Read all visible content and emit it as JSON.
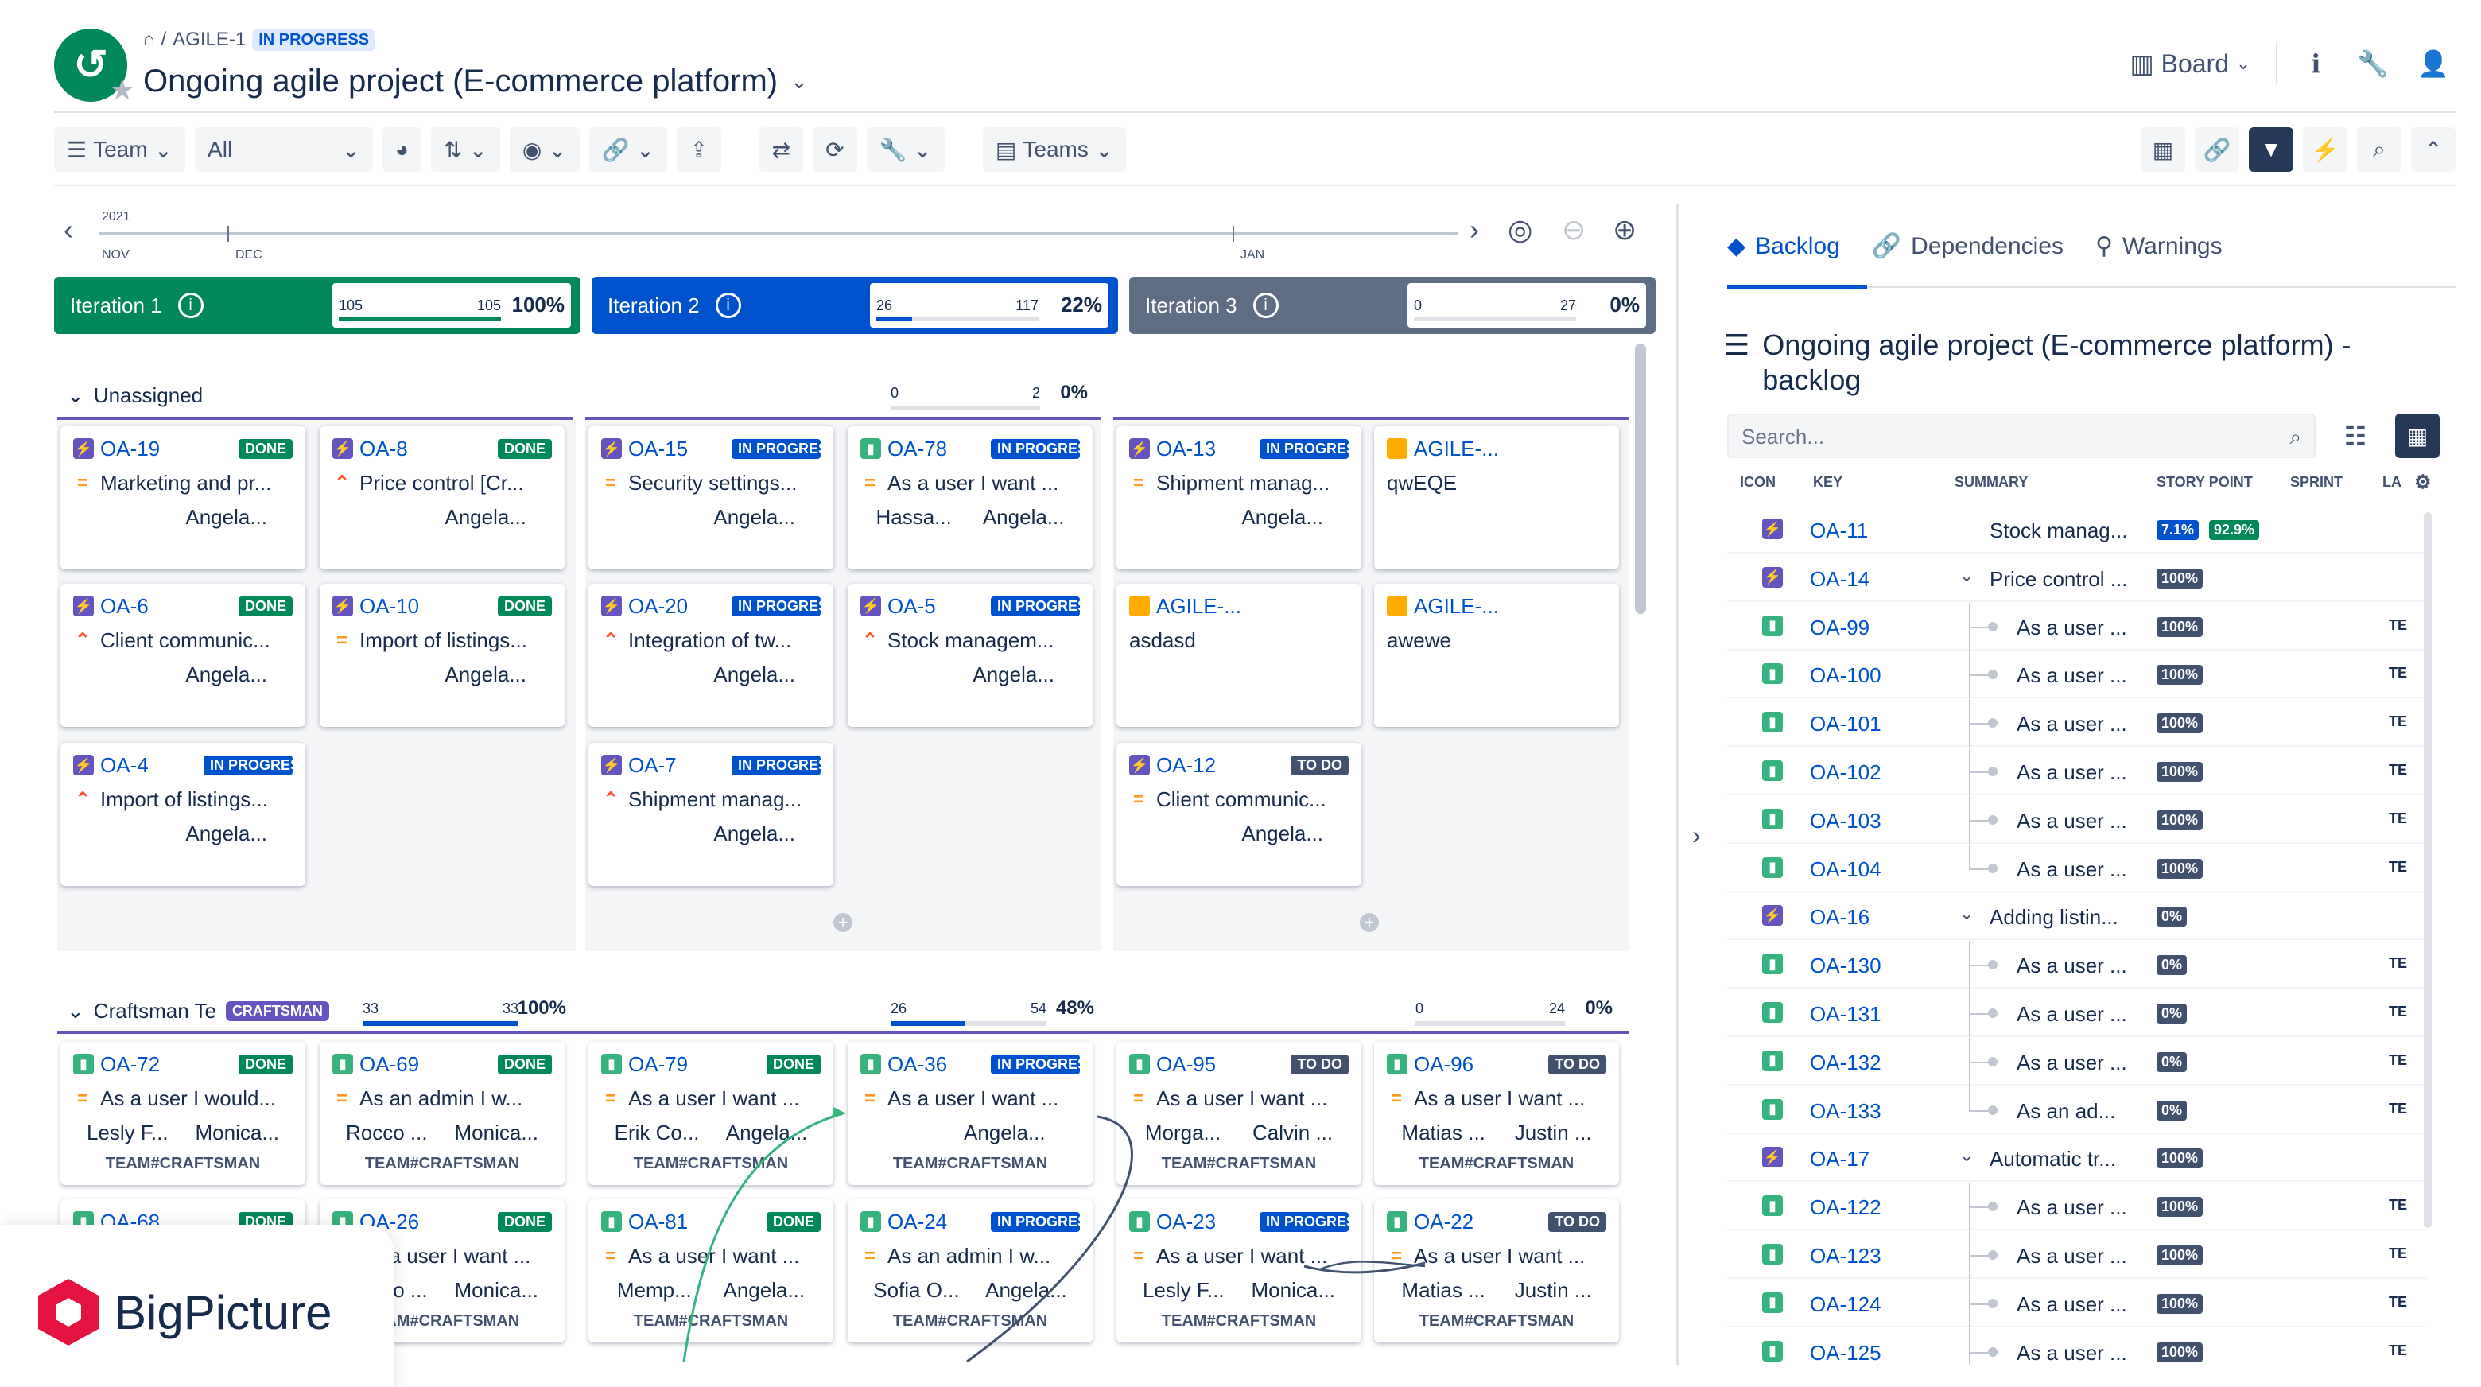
{
  "header": {
    "breadcrumb_key": "AGILE-1",
    "breadcrumb_sep": "/",
    "status": "IN PROGRESS",
    "title": "Ongoing agile project (E-commerce platform)",
    "view_label": "Board"
  },
  "toolbar": {
    "team_label": "Team",
    "filter_value": "All",
    "teams_label": "Teams"
  },
  "timeline": {
    "year": "2021",
    "months": [
      "NOV",
      "DEC",
      "JAN"
    ]
  },
  "iterations": [
    {
      "name": "Iteration 1",
      "done": "105",
      "total": "105",
      "percent": "100%",
      "fill": 1.0,
      "color": "#00875a"
    },
    {
      "name": "Iteration 2",
      "done": "26",
      "total": "117",
      "percent": "22%",
      "fill": 0.22,
      "color": "#0052cc"
    },
    {
      "name": "Iteration 3",
      "done": "0",
      "total": "27",
      "percent": "0%",
      "fill": 0.0,
      "color": "#5e6c84"
    }
  ],
  "lanes": {
    "unassigned": {
      "name": "Unassigned",
      "progress": {
        "done": "0",
        "total": "2",
        "percent": "0%",
        "fill": 0.0
      }
    },
    "craftsman": {
      "name": "Craftsman Te",
      "badge": "CRAFTSMAN",
      "progress": [
        {
          "done": "33",
          "total": "33",
          "percent": "100%",
          "fill": 1.0
        },
        {
          "done": "26",
          "total": "54",
          "percent": "48%",
          "fill": 0.48
        },
        {
          "done": "0",
          "total": "24",
          "percent": "0%",
          "fill": 0.0
        }
      ]
    }
  },
  "cards": [
    {
      "key": "OA-19",
      "status": "DONE",
      "summary": "Marketing and pr...",
      "assignee": "Angela...",
      "icon": "epic",
      "prio": "med"
    },
    {
      "key": "OA-8",
      "status": "DONE",
      "summary": "Price control [Cr...",
      "assignee": "Angela...",
      "icon": "epic",
      "prio": "high"
    },
    {
      "key": "OA-15",
      "status": "IN PROGRESS",
      "summary": "Security settings...",
      "assignee": "Angela...",
      "icon": "epic",
      "prio": "med"
    },
    {
      "key": "OA-78",
      "status": "IN PROGRESS",
      "summary": "As a user I want ...",
      "assignee": "Hassa...",
      "assignee2": "Angela...",
      "icon": "story",
      "prio": "med"
    },
    {
      "key": "OA-13",
      "status": "IN PROGRESS",
      "summary": "Shipment manag...",
      "assignee": "Angela...",
      "icon": "epic",
      "prio": "med"
    },
    {
      "key": "AGILE-...",
      "status": "",
      "summary": "qwEQE",
      "assignee": "",
      "icon": "sub",
      "prio": ""
    },
    {
      "key": "OA-6",
      "status": "DONE",
      "summary": "Client communic...",
      "assignee": "Angela...",
      "icon": "epic",
      "prio": "high"
    },
    {
      "key": "OA-10",
      "status": "DONE",
      "summary": "Import of listings...",
      "assignee": "Angela...",
      "icon": "epic",
      "prio": "med"
    },
    {
      "key": "OA-20",
      "status": "IN PROGRESS",
      "summary": "Integration of tw...",
      "assignee": "Angela...",
      "icon": "epic",
      "prio": "high"
    },
    {
      "key": "OA-5",
      "status": "IN PROGRESS",
      "summary": "Stock managem...",
      "assignee": "Angela...",
      "icon": "epic",
      "prio": "high"
    },
    {
      "key": "AGILE-...",
      "status": "",
      "summary": "asdasd",
      "assignee": "",
      "icon": "sub",
      "prio": ""
    },
    {
      "key": "AGILE-...",
      "status": "",
      "summary": "awewe",
      "assignee": "",
      "icon": "sub",
      "prio": ""
    },
    {
      "key": "OA-4",
      "status": "IN PROGRESS",
      "summary": "Import of listings...",
      "assignee": "Angela...",
      "icon": "epic",
      "prio": "high"
    },
    {
      "key": "OA-7",
      "status": "IN PROGRESS",
      "summary": "Shipment manag...",
      "assignee": "Angela...",
      "icon": "epic",
      "prio": "high"
    },
    {
      "key": "OA-12",
      "status": "TO DO",
      "summary": "Client communic...",
      "assignee": "Angela...",
      "icon": "epic",
      "prio": "med"
    },
    {
      "key": "OA-72",
      "status": "DONE",
      "summary": "As a user I would...",
      "assignee": "Lesly F...",
      "assignee2": "Monica...",
      "team": "TEAM#CRAFTSMAN",
      "icon": "story",
      "prio": "med"
    },
    {
      "key": "OA-69",
      "status": "DONE",
      "summary": "As an admin I w...",
      "assignee": "Rocco ...",
      "assignee2": "Monica...",
      "team": "TEAM#CRAFTSMAN",
      "icon": "story",
      "prio": "med"
    },
    {
      "key": "OA-79",
      "status": "DONE",
      "summary": "As a user I want ...",
      "assignee": "Erik Co...",
      "assignee2": "Angela...",
      "team": "TEAM#CRAFTSMAN",
      "icon": "story",
      "prio": "med"
    },
    {
      "key": "OA-36",
      "status": "IN PROGRESS",
      "summary": "As a user I want ...",
      "assignee": "",
      "assignee2": "Angela...",
      "team": "TEAM#CRAFTSMAN",
      "icon": "story",
      "prio": "med"
    },
    {
      "key": "OA-95",
      "status": "TO DO",
      "summary": "As a user I want ...",
      "assignee": "Morga...",
      "assignee2": "Calvin ...",
      "team": "TEAM#CRAFTSMAN",
      "icon": "story",
      "prio": "med"
    },
    {
      "key": "OA-96",
      "status": "TO DO",
      "summary": "As a user I want ...",
      "assignee": "Matias ...",
      "assignee2": "Justin ...",
      "team": "TEAM#CRAFTSMAN",
      "icon": "story",
      "prio": "med"
    },
    {
      "key": "OA-68",
      "status": "DONE",
      "summary": "",
      "assignee": "",
      "team": "",
      "icon": "story",
      "prio": ""
    },
    {
      "key": "OA-26",
      "status": "DONE",
      "summary": "As a user I want ...",
      "assignee": "Rocco ...",
      "assignee2": "Monica...",
      "team": "TEAM#CRAFTSMAN",
      "icon": "story",
      "prio": "med"
    },
    {
      "key": "OA-81",
      "status": "DONE",
      "summary": "As a user I want ...",
      "assignee": "Memp...",
      "assignee2": "Angela...",
      "team": "TEAM#CRAFTSMAN",
      "icon": "story",
      "prio": "med"
    },
    {
      "key": "OA-24",
      "status": "IN PROGRESS",
      "summary": "As an admin I w...",
      "assignee": "Sofia O...",
      "assignee2": "Angela...",
      "team": "TEAM#CRAFTSMAN",
      "icon": "story",
      "prio": "med"
    },
    {
      "key": "OA-23",
      "status": "IN PROGRESS",
      "summary": "As a user I want ...",
      "assignee": "Lesly F...",
      "assignee2": "Monica...",
      "team": "TEAM#CRAFTSMAN",
      "icon": "story",
      "prio": "med"
    },
    {
      "key": "OA-22",
      "status": "TO DO",
      "summary": "As a user I want ...",
      "assignee": "Matias ...",
      "assignee2": "Justin ...",
      "team": "TEAM#CRAFTSMAN",
      "icon": "story",
      "prio": "med"
    }
  ],
  "panel": {
    "tabs": [
      "Backlog",
      "Dependencies",
      "Warnings"
    ],
    "title": "Ongoing agile project (E-commerce platform) - backlog",
    "search_placeholder": "Search...",
    "columns": [
      "ICON",
      "KEY",
      "SUMMARY",
      "STORY POINT",
      "SPRINT",
      "LA"
    ],
    "rows": [
      {
        "type": "epic",
        "key": "OA-11",
        "summary": "Stock manag...",
        "sp": "7.1%",
        "sp2": "92.9%",
        "level": 0,
        "expand": false,
        "team": ""
      },
      {
        "type": "epic",
        "key": "OA-14",
        "summary": "Price control ...",
        "sp": "100%",
        "level": 0,
        "expand": true,
        "team": ""
      },
      {
        "type": "story",
        "key": "OA-99",
        "summary": "As a user ...",
        "sp": "100%",
        "level": 1,
        "team": "TE"
      },
      {
        "type": "story",
        "key": "OA-100",
        "summary": "As a user ...",
        "sp": "100%",
        "level": 1,
        "team": "TE"
      },
      {
        "type": "story",
        "key": "OA-101",
        "summary": "As a user ...",
        "sp": "100%",
        "level": 1,
        "team": "TE"
      },
      {
        "type": "story",
        "key": "OA-102",
        "summary": "As a user ...",
        "sp": "100%",
        "level": 1,
        "team": "TE"
      },
      {
        "type": "story",
        "key": "OA-103",
        "summary": "As a user ...",
        "sp": "100%",
        "level": 1,
        "team": "TE"
      },
      {
        "type": "story",
        "key": "OA-104",
        "summary": "As a user ...",
        "sp": "100%",
        "level": 1,
        "team": "TE",
        "last": true
      },
      {
        "type": "epic",
        "key": "OA-16",
        "summary": "Adding listin...",
        "sp": "0%",
        "level": 0,
        "expand": true,
        "team": ""
      },
      {
        "type": "story",
        "key": "OA-130",
        "summary": "As a user ...",
        "sp": "0%",
        "level": 1,
        "team": "TE"
      },
      {
        "type": "story",
        "key": "OA-131",
        "summary": "As a user ...",
        "sp": "0%",
        "level": 1,
        "team": "TE"
      },
      {
        "type": "story",
        "key": "OA-132",
        "summary": "As a user ...",
        "sp": "0%",
        "level": 1,
        "team": "TE"
      },
      {
        "type": "story",
        "key": "OA-133",
        "summary": "As an ad...",
        "sp": "0%",
        "level": 1,
        "team": "TE",
        "last": true
      },
      {
        "type": "epic",
        "key": "OA-17",
        "summary": "Automatic tr...",
        "sp": "100%",
        "level": 0,
        "expand": true,
        "team": ""
      },
      {
        "type": "story",
        "key": "OA-122",
        "summary": "As a user ...",
        "sp": "100%",
        "level": 1,
        "team": "TE"
      },
      {
        "type": "story",
        "key": "OA-123",
        "summary": "As a user ...",
        "sp": "100%",
        "level": 1,
        "team": "TE"
      },
      {
        "type": "story",
        "key": "OA-124",
        "summary": "As a user ...",
        "sp": "100%",
        "level": 1,
        "team": "TE"
      },
      {
        "type": "story",
        "key": "OA-125",
        "summary": "As a user ...",
        "sp": "100%",
        "level": 1,
        "team": "TE"
      }
    ]
  },
  "brand": {
    "name": "BigPicture"
  }
}
